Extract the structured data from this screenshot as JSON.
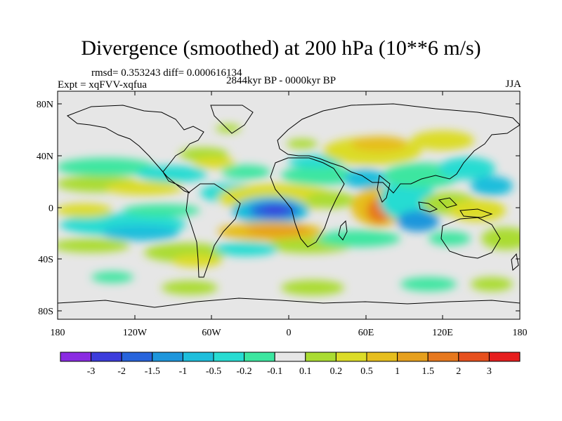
{
  "title": "Divergence (smoothed) at 200 hPa (10**6 m/s)",
  "stats": {
    "rmsd_text": "rmsd= 0.353243  diff= 0.000616134"
  },
  "experiment": {
    "text": "Expt = xqFVV-xqfua"
  },
  "period": "2844kyr BP - 0000kyr BP",
  "season": "JJA",
  "map": {
    "background_color": "#e6e6e6",
    "lat_labels": [
      {
        "id": "80n",
        "label": "80N"
      },
      {
        "id": "40n",
        "label": "40N"
      },
      {
        "id": "eq",
        "label": "0"
      },
      {
        "id": "40s",
        "label": "40S"
      },
      {
        "id": "80s",
        "label": "80S"
      }
    ],
    "lon_labels": [
      {
        "id": "180w",
        "label": "180"
      },
      {
        "id": "120w",
        "label": "120W"
      },
      {
        "id": "60w",
        "label": "60W"
      },
      {
        "id": "0",
        "label": "0"
      },
      {
        "id": "60e",
        "label": "60E"
      },
      {
        "id": "120e",
        "label": "120E"
      },
      {
        "id": "180e",
        "label": "180"
      }
    ]
  },
  "colorbar": {
    "colors": [
      "#8a2be2",
      "#3c3cdc",
      "#2864dc",
      "#1e96dc",
      "#1ebedc",
      "#28dcd2",
      "#3ce6a0",
      "#e6e6e6",
      "#aadc32",
      "#dcdc28",
      "#e6be1e",
      "#e6a01e",
      "#e6781e",
      "#e6501e",
      "#e61e1e"
    ],
    "labels": [
      "-3",
      "-2",
      "-1.5",
      "-1",
      "-0.5",
      "-0.2",
      "-0.1",
      "0.1",
      "0.2",
      "0.5",
      "1",
      "1.5",
      "2",
      "3"
    ]
  }
}
